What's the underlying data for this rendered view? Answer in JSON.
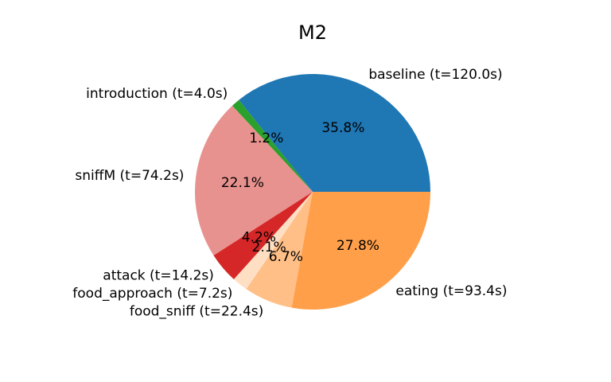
{
  "chart_data": {
    "type": "pie",
    "title": "M2",
    "start_angle_deg": 0,
    "direction": "counterclockwise",
    "slices": [
      {
        "label": "baseline (t=120.0s)",
        "pct_label": "35.8%",
        "value": 120.0,
        "color": "#1f77b4"
      },
      {
        "label": "introduction (t=4.0s)",
        "pct_label": "1.2%",
        "value": 4.0,
        "color": "#2ca02c"
      },
      {
        "label": "sniffM (t=74.2s)",
        "pct_label": "22.1%",
        "value": 74.2,
        "color": "#e8928f"
      },
      {
        "label": "attack (t=14.2s)",
        "pct_label": "4.2%",
        "value": 14.2,
        "color": "#d62728"
      },
      {
        "label": "food_approach (t=7.2s)",
        "pct_label": "2.1%",
        "value": 7.2,
        "color": "#ffdfc4"
      },
      {
        "label": "food_sniff (t=22.4s)",
        "pct_label": "6.7%",
        "value": 22.4,
        "color": "#ffbf86"
      },
      {
        "label": "eating (t=93.4s)",
        "pct_label": "27.8%",
        "value": 93.4,
        "color": "#ff9f4a"
      }
    ]
  }
}
